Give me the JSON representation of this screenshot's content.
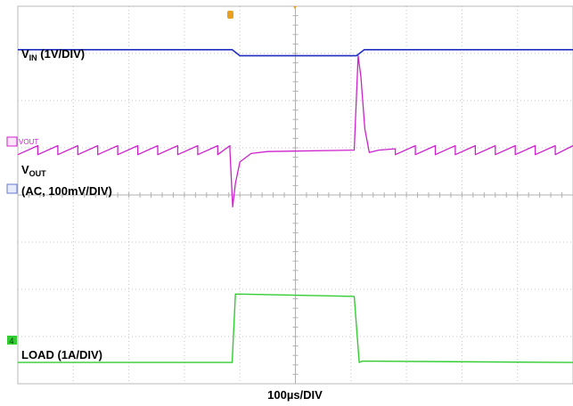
{
  "chart_data": {
    "type": "line",
    "title": "",
    "xlabel": "100µs/DIV",
    "grid": true,
    "divisions": {
      "x": 10,
      "y": 8
    },
    "time_per_div_us": 100,
    "series": [
      {
        "name": "VIN",
        "label_main": "V",
        "label_sub": "IN",
        "label_rest": " (1V/DIV)",
        "color": "#1f2fbf",
        "scale": "1V/DIV",
        "x_div": [
          0,
          3.86,
          4.0,
          6.1,
          6.24,
          10
        ],
        "y_div": [
          7.08,
          7.08,
          6.95,
          6.95,
          7.08,
          7.08
        ]
      },
      {
        "name": "VOUT",
        "label_main": "V",
        "label_sub": "OUT",
        "label_line2": "(AC, 100mV/DIV)",
        "tag": "VOUT",
        "color": "#cc22cc",
        "scale": "AC, 100mV/DIV",
        "ripple_period_div": 0.36,
        "ripple_amplitude_div": 0.19,
        "x_div": [
          0,
          3.82,
          3.87,
          3.92,
          4.0,
          4.2,
          4.5,
          5.0,
          6.06,
          6.13,
          6.18,
          6.25,
          6.33,
          6.5,
          6.8
        ],
        "y_div": [
          4.95,
          4.95,
          3.75,
          4.25,
          4.7,
          4.88,
          4.92,
          4.93,
          4.95,
          6.95,
          6.5,
          5.4,
          4.9,
          4.95,
          4.98
        ]
      },
      {
        "name": "LOAD",
        "label_rest": "LOAD (1A/DIV)",
        "color": "#33cc33",
        "scale": "1A/DIV",
        "x_div": [
          0,
          3.86,
          3.92,
          4.0,
          6.06,
          6.15,
          6.2,
          10
        ],
        "y_div": [
          0.45,
          0.45,
          1.9,
          1.9,
          1.85,
          0.45,
          0.48,
          0.45
        ]
      }
    ],
    "markers": [
      "trigger-marker",
      "ch3-ground-marker",
      "ch2-ground-marker",
      "ch4-ground-marker"
    ]
  }
}
